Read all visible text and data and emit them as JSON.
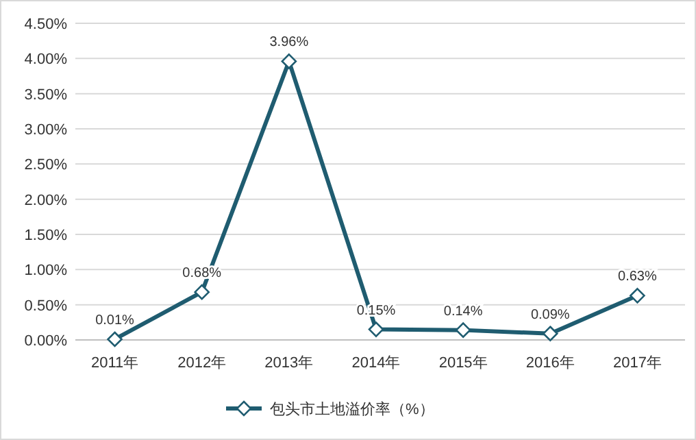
{
  "chart_data": {
    "type": "line",
    "categories": [
      "2011年",
      "2012年",
      "2013年",
      "2014年",
      "2015年",
      "2016年",
      "2017年"
    ],
    "series": [
      {
        "name": "包头市土地溢价率（%）",
        "color": "#1f5c70",
        "values": [
          0.01,
          0.68,
          3.96,
          0.15,
          0.14,
          0.09,
          0.63
        ],
        "value_labels": [
          "0.01%",
          "0.68%",
          "3.96%",
          "0.15%",
          "0.14%",
          "0.09%",
          "0.63%"
        ]
      }
    ],
    "ylim": [
      0,
      4.5
    ],
    "yticks": [
      {
        "value": 0,
        "label": "0.00%"
      },
      {
        "value": 0.5,
        "label": "0.50%"
      },
      {
        "value": 1,
        "label": "1.00%"
      },
      {
        "value": 1.5,
        "label": "1.50%"
      },
      {
        "value": 2,
        "label": "2.00%"
      },
      {
        "value": 2.5,
        "label": "2.50%"
      },
      {
        "value": 3,
        "label": "3.00%"
      },
      {
        "value": 3.5,
        "label": "3.50%"
      },
      {
        "value": 4,
        "label": "4.00%"
      },
      {
        "value": 4.5,
        "label": "4.50%"
      }
    ],
    "grid": "y",
    "legend": "bottom",
    "marker": "diamond",
    "line_style": "solid"
  }
}
